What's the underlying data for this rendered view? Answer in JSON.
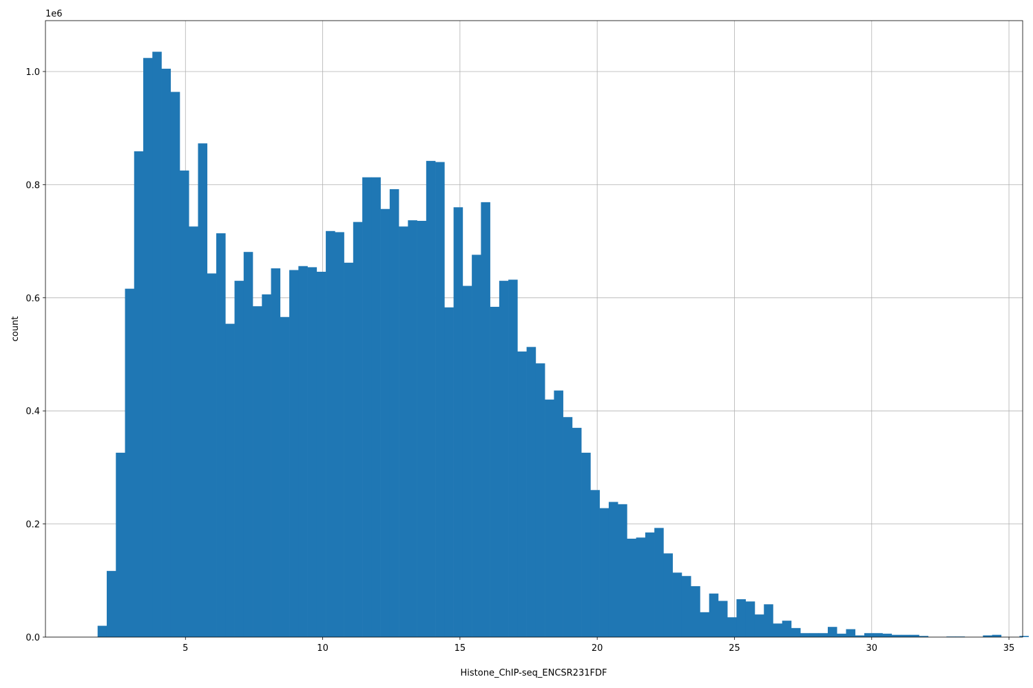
{
  "chart_data": {
    "type": "bar",
    "xlabel": "Histone_ChIP-seq_ENCSR231FDF",
    "ylabel": "count",
    "y_offset_label": "1e6",
    "xlim": [
      -0.1,
      35.5
    ],
    "ylim": [
      0,
      1.09
    ],
    "y_scale": 1000000,
    "grid": true,
    "bar_color": "#1f77b4",
    "bin_start": 1.8,
    "bin_width": 0.3325,
    "xticks": [
      5,
      10,
      15,
      20,
      25,
      30,
      35
    ],
    "xtick_labels": [
      "5",
      "10",
      "15",
      "20",
      "25",
      "30",
      "35"
    ],
    "yticks": [
      0,
      0.2,
      0.4,
      0.6,
      0.8,
      1.0
    ],
    "ytick_labels": [
      "0.0",
      "0.2",
      "0.4",
      "0.6",
      "0.8",
      "1.0"
    ],
    "values": [
      0.02,
      0.117,
      0.326,
      0.616,
      0.859,
      1.024,
      1.035,
      1.005,
      0.964,
      0.825,
      0.726,
      0.873,
      0.643,
      0.714,
      0.554,
      0.63,
      0.681,
      0.585,
      0.606,
      0.652,
      0.566,
      0.649,
      0.656,
      0.654,
      0.646,
      0.718,
      0.716,
      0.662,
      0.734,
      0.813,
      0.813,
      0.757,
      0.792,
      0.726,
      0.737,
      0.736,
      0.842,
      0.84,
      0.583,
      0.76,
      0.621,
      0.676,
      0.769,
      0.584,
      0.63,
      0.632,
      0.505,
      0.513,
      0.484,
      0.42,
      0.436,
      0.389,
      0.37,
      0.326,
      0.26,
      0.228,
      0.239,
      0.235,
      0.174,
      0.176,
      0.185,
      0.193,
      0.148,
      0.114,
      0.108,
      0.09,
      0.044,
      0.077,
      0.064,
      0.035,
      0.067,
      0.063,
      0.04,
      0.058,
      0.024,
      0.029,
      0.016,
      0.007,
      0.007,
      0.007,
      0.018,
      0.006,
      0.014,
      0.003,
      0.007,
      0.007,
      0.006,
      0.004,
      0.004,
      0.004,
      0.002,
      0.0,
      0.0,
      0.001,
      0.001,
      0.0,
      0.0,
      0.003,
      0.004,
      0.0,
      0.0,
      0.002
    ]
  }
}
